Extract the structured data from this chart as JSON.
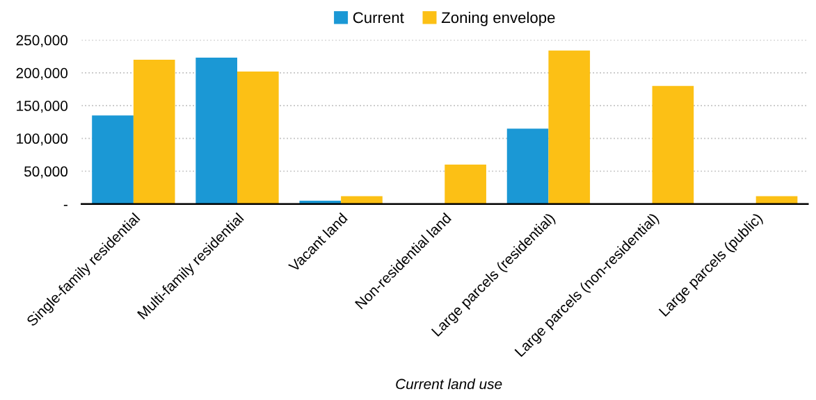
{
  "chart_data": {
    "type": "bar",
    "xlabel": "Current land use",
    "categories": [
      "Single-family residential",
      "Multi-family residential",
      "Vacant land",
      "Non-residential land",
      "Large parcels (residential)",
      "Large parcels (non-residential)",
      "Large parcels (public)"
    ],
    "series": [
      {
        "name": "Current",
        "color": "#1b98d5",
        "values": [
          135000,
          223000,
          5000,
          0,
          115000,
          0,
          0
        ]
      },
      {
        "name": "Zoning envelope",
        "color": "#fcc015",
        "values": [
          220000,
          202000,
          12000,
          60000,
          234000,
          180000,
          12000
        ]
      }
    ],
    "ylim": [
      0,
      250000
    ],
    "yticks": [
      {
        "value": 0,
        "label": "-"
      },
      {
        "value": 50000,
        "label": "50,000"
      },
      {
        "value": 100000,
        "label": "100,000"
      },
      {
        "value": 150000,
        "label": "150,000"
      },
      {
        "value": 200000,
        "label": "200,000"
      },
      {
        "value": 250000,
        "label": "250,000"
      }
    ],
    "grid": "y",
    "legend": "top"
  }
}
